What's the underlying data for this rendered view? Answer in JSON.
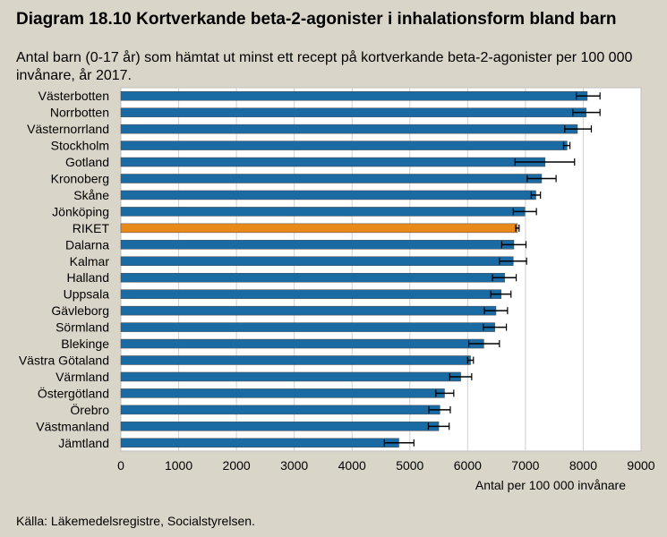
{
  "title": "Diagram 18.10 Kortverkande beta-2-agonister i inhalationsform bland barn",
  "subtitle": "Antal barn (0-17 år) som hämtat ut minst ett recept på kortverkande beta-2-agonister per 100 000 invånare, år 2017.",
  "source": "Källa: Läkemedelsregistre, Socialstyrelsen.",
  "colors": {
    "bar": "#1a6aa3",
    "highlight": "#e8891a",
    "error": "#000000",
    "plot_bg": "#ffffff",
    "page_bg": "#d9d6c9"
  },
  "chart_data": {
    "type": "bar",
    "orientation": "horizontal",
    "xlabel": "Antal per 100 000 invånare",
    "ylabel": "",
    "xlim": [
      0,
      9000
    ],
    "xticks": [
      "0",
      "1000",
      "2000",
      "3000",
      "4000",
      "5000",
      "6000",
      "7000",
      "8000",
      "9000"
    ],
    "grid": true,
    "highlight_category": "RIKET",
    "categories": [
      "Västerbotten",
      "Norrbotten",
      "Västernorrland",
      "Stockholm",
      "Gotland",
      "Kronoberg",
      "Skåne",
      "Jönköping",
      "RIKET",
      "Dalarna",
      "Kalmar",
      "Halland",
      "Uppsala",
      "Gävleborg",
      "Sörmland",
      "Blekinge",
      "Västra Götaland",
      "Värmland",
      "Östergötland",
      "Örebro",
      "Västmanland",
      "Jämtland"
    ],
    "values": [
      8070,
      8050,
      7900,
      7720,
      7340,
      7280,
      7180,
      6990,
      6860,
      6800,
      6790,
      6640,
      6580,
      6490,
      6470,
      6280,
      6050,
      5880,
      5600,
      5520,
      5500,
      4810
    ],
    "error_low": [
      7880,
      7820,
      7680,
      7660,
      6820,
      7030,
      7100,
      6790,
      6830,
      6590,
      6550,
      6430,
      6400,
      6290,
      6270,
      6020,
      6000,
      5690,
      5450,
      5330,
      5320,
      4560
    ],
    "error_high": [
      8290,
      8290,
      8140,
      7770,
      7850,
      7530,
      7260,
      7190,
      6890,
      7010,
      7020,
      6840,
      6750,
      6690,
      6670,
      6550,
      6100,
      6070,
      5760,
      5700,
      5680,
      5070
    ]
  }
}
